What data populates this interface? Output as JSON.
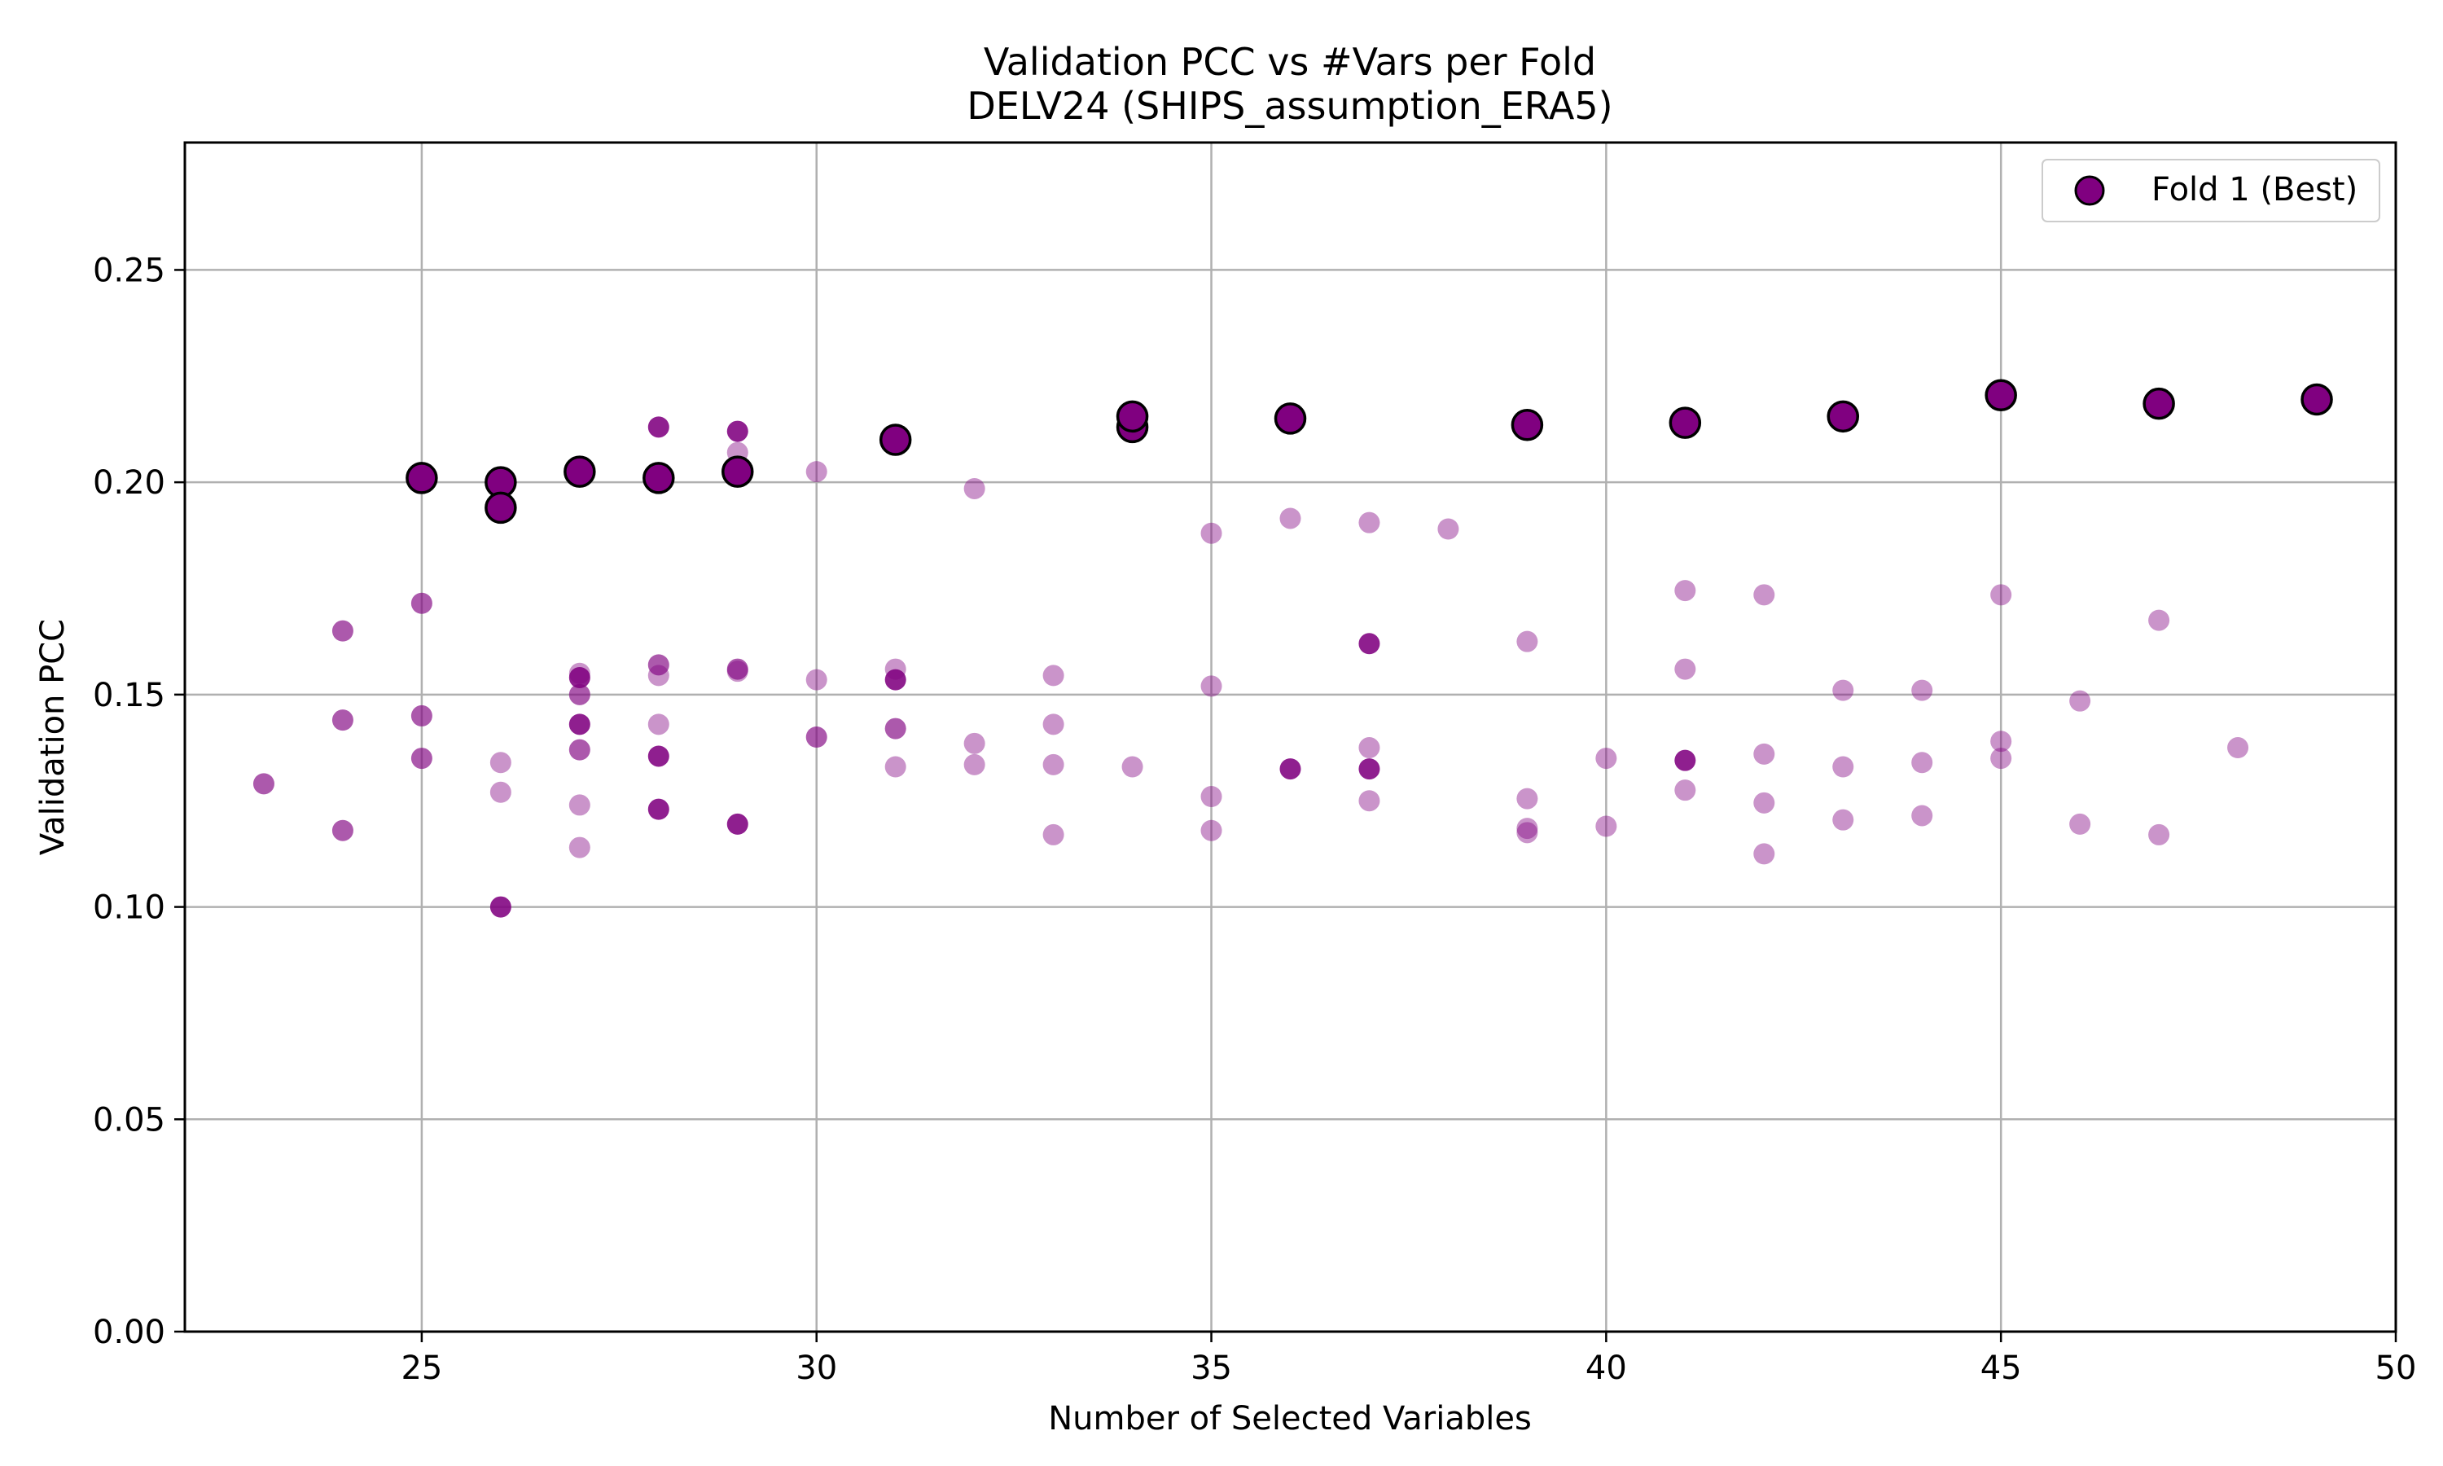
{
  "chart_data": {
    "type": "scatter",
    "title": "Validation PCC vs #Vars per Fold",
    "subtitle": "DELV24 (SHIPS_assumption_ERA5)",
    "xlabel": "Number of Selected Variables",
    "ylabel": "Validation PCC",
    "xlim": [
      22,
      50
    ],
    "ylim": [
      0,
      0.28
    ],
    "xticks": [
      25,
      30,
      35,
      40,
      45,
      50
    ],
    "xtick_labels": [
      "25",
      "30",
      "35",
      "40",
      "45",
      "50"
    ],
    "yticks": [
      0.0,
      0.05,
      0.1,
      0.15,
      0.2,
      0.25
    ],
    "ytick_labels": [
      "0.00",
      "0.05",
      "0.10",
      "0.15",
      "0.20",
      "0.25"
    ],
    "grid": true,
    "legend_position": "top-right",
    "colors": {
      "marker": "#800080",
      "edge": "#000000",
      "grid": "#b0b0b0"
    },
    "series": [
      {
        "name": "Fold 1 (Best)",
        "style": "best",
        "x": [
          25,
          26,
          26,
          27,
          28,
          29,
          31,
          34,
          34,
          36,
          39,
          41,
          43,
          45,
          47,
          49
        ],
        "y": [
          0.201,
          0.2,
          0.194,
          0.2025,
          0.201,
          0.2025,
          0.21,
          0.213,
          0.2155,
          0.215,
          0.2135,
          0.214,
          0.2155,
          0.2205,
          0.2185,
          0.2195
        ]
      },
      {
        "style": "dark",
        "x": [
          27,
          27,
          28,
          28,
          28,
          29,
          29,
          31,
          36,
          37,
          37,
          41,
          26
        ],
        "y": [
          0.143,
          0.154,
          0.213,
          0.1355,
          0.123,
          0.212,
          0.1195,
          0.1535,
          0.1325,
          0.162,
          0.1325,
          0.1345,
          0.1
        ]
      },
      {
        "style": "medium",
        "x": [
          23,
          24,
          24,
          24,
          25,
          25,
          25,
          27,
          27,
          28,
          29,
          30,
          31
        ],
        "y": [
          0.129,
          0.165,
          0.144,
          0.118,
          0.1715,
          0.145,
          0.135,
          0.15,
          0.137,
          0.157,
          0.156,
          0.14,
          0.142
        ]
      },
      {
        "style": "light",
        "x": [
          26,
          26,
          27,
          27,
          27,
          28,
          28,
          29,
          29,
          30,
          30,
          31,
          31,
          32,
          32,
          32,
          33,
          33,
          33,
          33,
          34,
          35,
          35,
          35,
          35,
          36,
          37,
          37,
          37,
          38,
          39,
          39,
          39,
          39,
          40,
          40,
          41,
          41,
          41,
          42,
          42,
          42,
          42,
          43,
          43,
          43,
          44,
          44,
          44,
          45,
          45,
          45,
          46,
          46,
          47,
          47,
          48
        ],
        "y": [
          0.134,
          0.127,
          0.155,
          0.124,
          0.114,
          0.1545,
          0.143,
          0.207,
          0.1555,
          0.2025,
          0.1535,
          0.156,
          0.133,
          0.1985,
          0.1385,
          0.1335,
          0.1545,
          0.143,
          0.1335,
          0.117,
          0.133,
          0.188,
          0.152,
          0.126,
          0.118,
          0.1915,
          0.1905,
          0.1375,
          0.125,
          0.189,
          0.1625,
          0.1255,
          0.1185,
          0.1175,
          0.135,
          0.119,
          0.1745,
          0.156,
          0.1275,
          0.1735,
          0.136,
          0.1245,
          0.1125,
          0.151,
          0.133,
          0.1205,
          0.151,
          0.134,
          0.1215,
          0.1735,
          0.139,
          0.135,
          0.1485,
          0.1195,
          0.1675,
          0.117,
          0.1375
        ]
      }
    ]
  }
}
